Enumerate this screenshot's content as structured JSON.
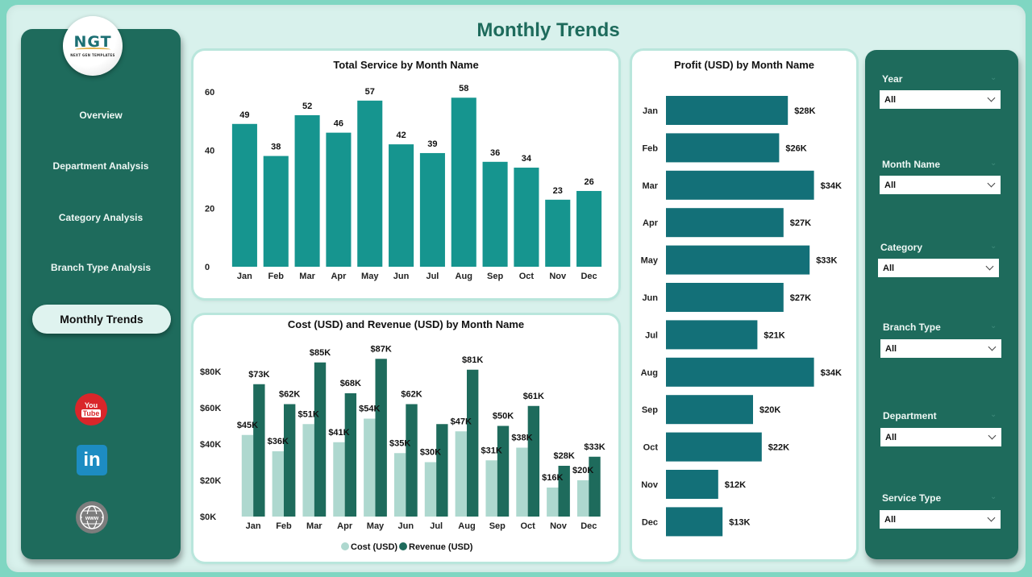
{
  "page": {
    "title": "Monthly Trends"
  },
  "logo": {
    "mark": "NGT",
    "subtitle": "NEXT GEN TEMPLATES"
  },
  "nav": {
    "items": [
      {
        "label": "Overview",
        "active": false
      },
      {
        "label": "Department Analysis",
        "active": false
      },
      {
        "label": "Category Analysis",
        "active": false
      },
      {
        "label": "Branch Type Analysis",
        "active": false
      },
      {
        "label": "Monthly Trends",
        "active": true
      }
    ],
    "social": [
      {
        "name": "youtube-icon",
        "line1": "You",
        "line2": "Tube"
      },
      {
        "name": "linkedin-icon",
        "text": "in"
      },
      {
        "name": "website-icon",
        "text": "www"
      }
    ]
  },
  "filters": [
    {
      "label": "Year",
      "value": "All"
    },
    {
      "label": "Month Name",
      "value": "All"
    },
    {
      "label": "Category",
      "value": "All"
    },
    {
      "label": "Branch Type",
      "value": "All"
    },
    {
      "label": "Department",
      "value": "All"
    },
    {
      "label": "Service Type",
      "value": "All"
    }
  ],
  "colors": {
    "primary": "#1e6b5c",
    "service_bar": "#16958f",
    "profit_bar": "#137078",
    "cost": "#aed8cf",
    "revenue": "#1e6b5c"
  },
  "chart_data": [
    {
      "id": "service",
      "type": "bar",
      "title": "Total Service by Month Name",
      "categories": [
        "Jan",
        "Feb",
        "Mar",
        "Apr",
        "May",
        "Jun",
        "Jul",
        "Aug",
        "Sep",
        "Oct",
        "Nov",
        "Dec"
      ],
      "values": [
        49,
        38,
        52,
        46,
        57,
        42,
        39,
        58,
        36,
        34,
        23,
        26
      ],
      "yticks": [
        "0",
        "20",
        "40",
        "60"
      ],
      "ylim": [
        0,
        60
      ],
      "xlabel": "",
      "ylabel": "",
      "grid": false
    },
    {
      "id": "cost_revenue",
      "type": "bar",
      "title": "Cost (USD) and Revenue (USD) by Month Name",
      "categories": [
        "Jan",
        "Feb",
        "Mar",
        "Apr",
        "May",
        "Jun",
        "Jul",
        "Aug",
        "Sep",
        "Oct",
        "Nov",
        "Dec"
      ],
      "series": [
        {
          "name": "Cost (USD)",
          "values": [
            45,
            36,
            51,
            41,
            54,
            35,
            30,
            47,
            31,
            38,
            16,
            20
          ],
          "labels": [
            "$45K",
            "$36K",
            "$51K",
            "$41K",
            "$54K",
            "$35K",
            "$30K",
            "$47K",
            "$31K",
            "$38K",
            "$16K",
            "$20K"
          ]
        },
        {
          "name": "Revenue (USD)",
          "values": [
            73,
            62,
            85,
            68,
            87,
            62,
            51,
            81,
            50,
            61,
            28,
            33
          ],
          "labels": [
            "$73K",
            "$62K",
            "$85K",
            "$68K",
            "$87K",
            "$62K",
            "",
            "$81K",
            "$50K",
            "$61K",
            "$28K",
            "$33K"
          ]
        }
      ],
      "units": "thousands USD",
      "yticks": [
        "$0K",
        "$20K",
        "$40K",
        "$60K",
        "$80K"
      ],
      "ylim": [
        0,
        90
      ],
      "legend": "bottom-center",
      "grid": false
    },
    {
      "id": "profit",
      "type": "bar",
      "orientation": "horizontal",
      "title": "Profit (USD) by Month Name",
      "categories": [
        "Jan",
        "Feb",
        "Mar",
        "Apr",
        "May",
        "Jun",
        "Jul",
        "Aug",
        "Sep",
        "Oct",
        "Nov",
        "Dec"
      ],
      "values": [
        28,
        26,
        34,
        27,
        33,
        27,
        21,
        34,
        20,
        22,
        12,
        13
      ],
      "labels": [
        "$28K",
        "$26K",
        "$34K",
        "$27K",
        "$33K",
        "$27K",
        "$21K",
        "$34K",
        "$20K",
        "$22K",
        "$12K",
        "$13K"
      ],
      "units": "thousands USD",
      "xlim": [
        0,
        36
      ],
      "grid": false
    }
  ]
}
